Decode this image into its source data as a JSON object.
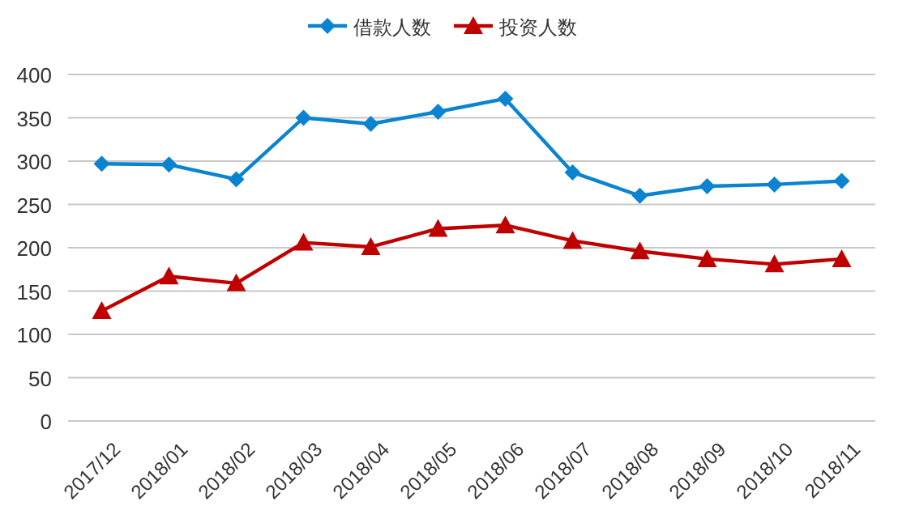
{
  "chart_data": {
    "type": "line",
    "categories": [
      "2017/12",
      "2018/01",
      "2018/02",
      "2018/03",
      "2018/04",
      "2018/05",
      "2018/06",
      "2018/07",
      "2018/08",
      "2018/09",
      "2018/10",
      "2018/11"
    ],
    "series": [
      {
        "name": "借款人数",
        "color": "#0a84d0",
        "marker": "diamond",
        "values": [
          297,
          296,
          279,
          350,
          343,
          357,
          372,
          287,
          260,
          271,
          273,
          277
        ]
      },
      {
        "name": "投资人数",
        "color": "#c00000",
        "marker": "triangle",
        "values": [
          127,
          167,
          159,
          206,
          201,
          222,
          226,
          208,
          196,
          187,
          181,
          187
        ]
      }
    ],
    "ylim": [
      0,
      400
    ],
    "yticks": [
      0,
      50,
      100,
      150,
      200,
      250,
      300,
      350,
      400
    ],
    "grid": "y",
    "legend": "top",
    "line_style": "solid"
  }
}
